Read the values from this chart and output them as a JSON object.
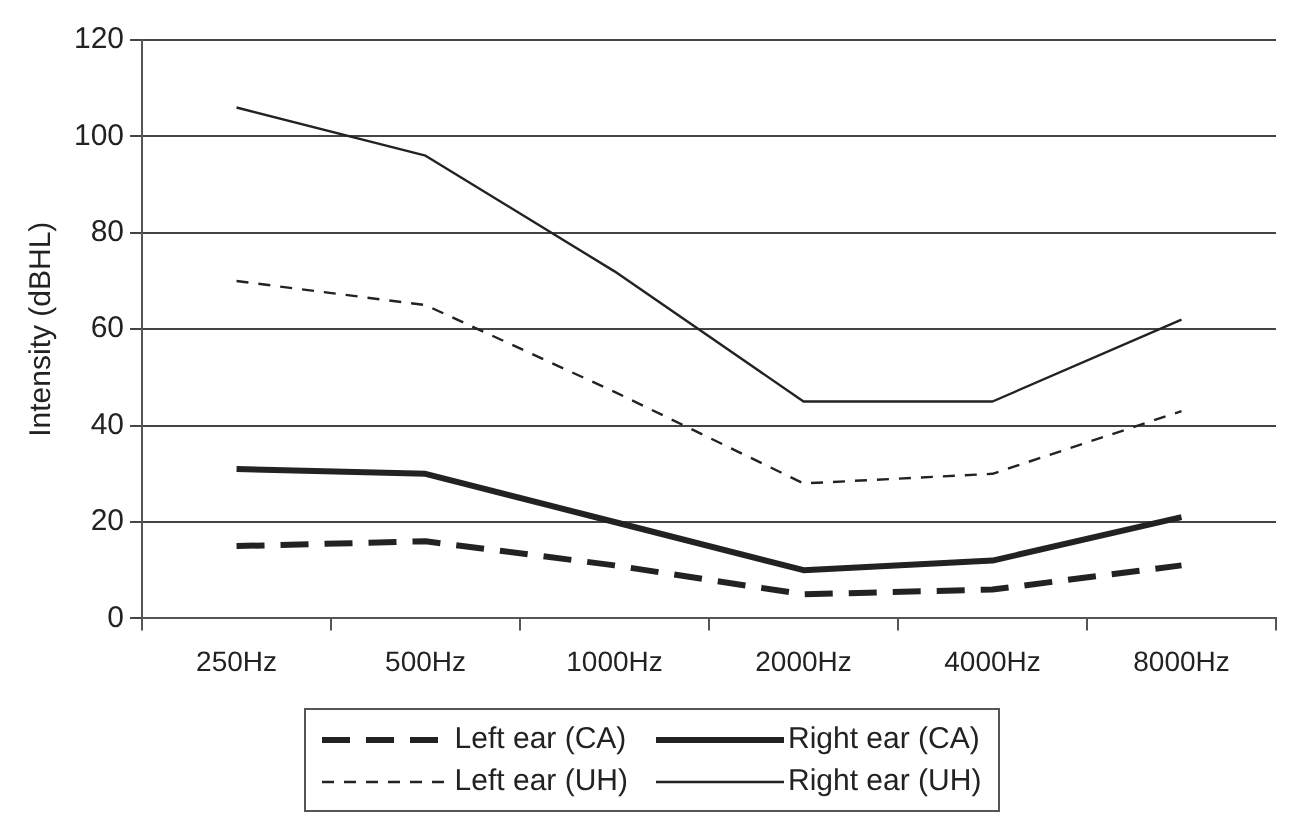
{
  "chart_data": {
    "type": "line",
    "ylabel": "Intensity (dBHL)",
    "categories": [
      "250Hz",
      "500Hz",
      "1000Hz",
      "2000Hz",
      "4000Hz",
      "8000Hz"
    ],
    "series": [
      {
        "name": "Left ear (CA)",
        "color": "#222222",
        "line_style": "dashed",
        "values": [
          15,
          16,
          11,
          5,
          6,
          11
        ]
      },
      {
        "name": "Right ear (CA)",
        "color": "#222222",
        "line_style": "solid",
        "values": [
          31,
          30,
          20,
          10,
          12,
          21
        ]
      },
      {
        "name": "Left ear (UH)",
        "color": "#222222",
        "line_style": "dashed",
        "values": [
          70,
          65,
          47,
          28,
          30,
          43
        ]
      },
      {
        "name": "Right ear (UH)",
        "color": "#222222",
        "line_style": "solid",
        "values": [
          106,
          96,
          72,
          45,
          45,
          62
        ]
      }
    ],
    "ylim": [
      0,
      120
    ],
    "yticks": [
      0,
      20,
      40,
      60,
      80,
      100,
      120
    ],
    "grid": "y",
    "legend": "bottom",
    "marker": "none"
  }
}
